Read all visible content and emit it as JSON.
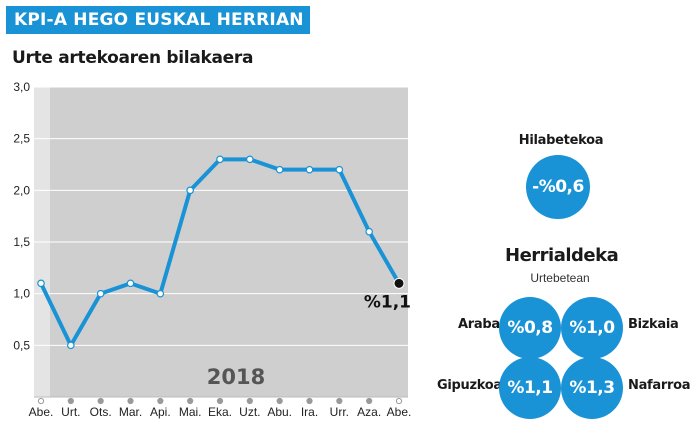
{
  "header": {
    "banner_title": "KPI-A HEGO EUSKAL HERRIAN"
  },
  "chart_title": "Urte artekoaren bilakaera",
  "chart_data": {
    "type": "line",
    "x": [
      "Abe.",
      "Urt.",
      "Ots.",
      "Mar.",
      "Api.",
      "Mai.",
      "Eka.",
      "Uzt.",
      "Abu.",
      "Ira.",
      "Urr.",
      "Aza.",
      "Abe."
    ],
    "series": [
      {
        "values": [
          1.1,
          0.5,
          1.0,
          1.1,
          1.0,
          2.0,
          2.3,
          2.3,
          2.2,
          2.2,
          2.2,
          1.6,
          1.1
        ]
      }
    ],
    "ylim": [
      0,
      3.0
    ],
    "yticks": [
      "0,5",
      "1,0",
      "1,5",
      "2,0",
      "2,5",
      "3,0"
    ],
    "year_label": "2018",
    "end_label": "%1,1",
    "grid": true,
    "line_color": "#1a93d6",
    "plot_bg": "#cfcfcf",
    "previous_year_bg": "#e4e4e4"
  },
  "monthly": {
    "title": "Hilabetekoa",
    "value": "-%0,6"
  },
  "regions": {
    "title": "Herrialdeka",
    "subtitle": "Urtebetean",
    "items": [
      {
        "name": "Araba",
        "value": "%0,8"
      },
      {
        "name": "Bizkaia",
        "value": "%1,0"
      },
      {
        "name": "Gipuzkoa",
        "value": "%1,1"
      },
      {
        "name": "Nafarroa",
        "value": "%1,3"
      }
    ]
  },
  "colors": {
    "accent": "#1a93d6"
  }
}
